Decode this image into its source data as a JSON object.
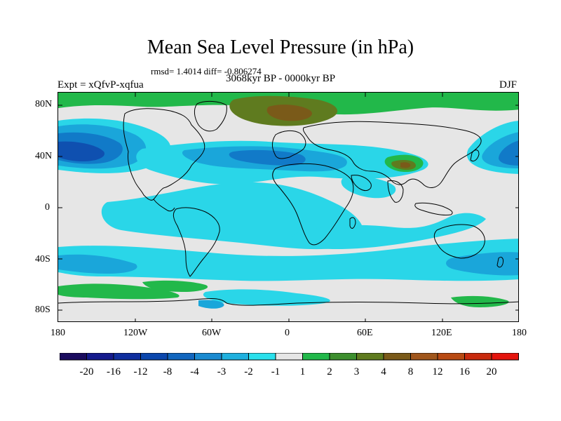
{
  "title": "Mean Sea Level Pressure (in hPa)",
  "subtitle_stats": "rmsd= 1.4014 diff= -0.806274",
  "period": "3068kyr BP - 0000kyr BP",
  "experiment": "Expt = xQfvP-xqfua",
  "season": "DJF",
  "lat_labels": [
    "80N",
    "40N",
    "0",
    "40S",
    "80S"
  ],
  "lon_labels": [
    "180",
    "120W",
    "60W",
    "0",
    "60E",
    "120E",
    "180"
  ],
  "colorbar": {
    "colors": [
      "#1a0b5e",
      "#141a8c",
      "#0f2e9e",
      "#0b47ad",
      "#1166be",
      "#1a8ad0",
      "#1fb0de",
      "#2ae0ec",
      "#e6e6e6",
      "#22b84a",
      "#3d8f2e",
      "#5f7b1f",
      "#7a5a19",
      "#a0561c",
      "#b84a13",
      "#c82a0d",
      "#e4140d"
    ],
    "labels": [
      "-20",
      "-16",
      "-12",
      "-8",
      "-4",
      "-3",
      "-2",
      "-1",
      "1",
      "2",
      "3",
      "4",
      "8",
      "12",
      "16",
      "20"
    ]
  },
  "map_colors": {
    "neutral": "#e6e6e6",
    "cyan": "#2ad6e8",
    "light_blue": "#1aa6da",
    "mid_blue": "#117ac8",
    "dark_blue": "#0f50b0",
    "green": "#22b84a",
    "olive": "#5f7b1f",
    "brown": "#7a5a19"
  }
}
